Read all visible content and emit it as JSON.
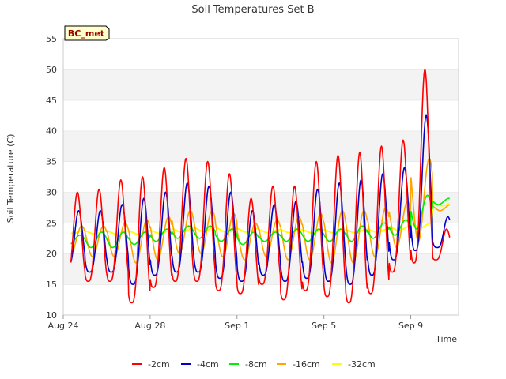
{
  "chart_data": {
    "type": "line",
    "title": "Soil Temperatures Set B",
    "xlabel": "Time",
    "ylabel": "Soil Temperature (C)",
    "site_label": "BC_met",
    "ylim": [
      10,
      55
    ],
    "yticks": [
      10,
      15,
      20,
      25,
      30,
      35,
      40,
      45,
      50,
      55
    ],
    "xlim": [
      0,
      18.2
    ],
    "xticks": [
      {
        "label": "Aug 24",
        "day": 0
      },
      {
        "label": "Aug 28",
        "day": 4
      },
      {
        "label": "Sep 1",
        "day": 8
      },
      {
        "label": "Sep 5",
        "day": 12
      },
      {
        "label": "Sep 9",
        "day": 16
      }
    ],
    "grid": "horizontal-bands",
    "legend": "bottom",
    "series": [
      {
        "name": "-2cm",
        "color": "#ff0000",
        "daily_min": [
          16,
          15.5,
          15.5,
          12,
          14.5,
          15.5,
          15.5,
          14,
          13.5,
          15,
          12.5,
          14,
          13,
          12,
          13.5,
          17,
          18.5,
          19
        ],
        "daily_max": [
          30,
          30.5,
          32,
          32.5,
          34,
          35.5,
          35,
          33,
          29,
          31,
          31,
          35,
          36,
          36.5,
          37.5,
          38.5,
          50,
          24
        ]
      },
      {
        "name": "-4cm",
        "color": "#0000cc",
        "daily_min": [
          18,
          17,
          17,
          15,
          16.5,
          17,
          17,
          16,
          15.5,
          16.5,
          15.5,
          16,
          15.5,
          15,
          16.5,
          19,
          20.5,
          21
        ],
        "daily_max": [
          27,
          27,
          28,
          29,
          30,
          31.5,
          31,
          30,
          27,
          28,
          28.5,
          30.5,
          31.5,
          32,
          33,
          34,
          42.5,
          26
        ]
      },
      {
        "name": "-8cm",
        "color": "#00ee00",
        "daily_min": [
          21.5,
          21,
          21,
          21.5,
          22,
          22.5,
          22.5,
          22,
          21.5,
          22,
          22,
          22,
          22,
          22,
          22.5,
          23,
          24,
          28
        ],
        "daily_max": [
          23,
          23.5,
          23.5,
          23.5,
          24,
          24.5,
          24.5,
          24,
          23.5,
          23.5,
          24,
          24,
          24,
          24.5,
          25,
          25.5,
          29.5,
          29
        ]
      },
      {
        "name": "-16cm",
        "color": "#ffa500",
        "daily_min": [
          20,
          19.5,
          19.5,
          18.5,
          19,
          20,
          20,
          19.5,
          19,
          19.5,
          19,
          19,
          18.5,
          18.5,
          19.5,
          21,
          22,
          27
        ],
        "daily_max": [
          24.5,
          24.5,
          25,
          25.5,
          26,
          27,
          27,
          26.5,
          25,
          25.5,
          26,
          26.5,
          27,
          27,
          27.5,
          28.5,
          35.5,
          28
        ]
      },
      {
        "name": "-32cm",
        "color": "#ffff00",
        "daily_min": [
          23.3,
          23.2,
          23.2,
          23.2,
          23.3,
          23.5,
          23.6,
          23.6,
          23.5,
          23.4,
          23.4,
          23.4,
          23.4,
          23.4,
          23.5,
          23.8,
          24.2,
          27.8
        ],
        "daily_max": [
          23.8,
          23.7,
          23.7,
          23.7,
          23.8,
          24.1,
          24.3,
          24.3,
          24.1,
          23.9,
          23.9,
          23.9,
          23.9,
          23.9,
          24.0,
          24.4,
          25.0,
          28.3
        ]
      }
    ]
  }
}
